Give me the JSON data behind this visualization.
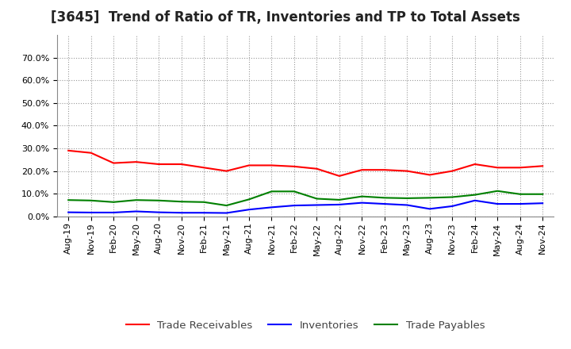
{
  "title": "[3645]  Trend of Ratio of TR, Inventories and TP to Total Assets",
  "x_labels": [
    "Aug-19",
    "Nov-19",
    "Feb-20",
    "May-20",
    "Aug-20",
    "Nov-20",
    "Feb-21",
    "May-21",
    "Aug-21",
    "Nov-21",
    "Feb-22",
    "May-22",
    "Aug-22",
    "Nov-22",
    "Feb-23",
    "May-23",
    "Aug-23",
    "Nov-23",
    "Feb-24",
    "May-24",
    "Aug-24",
    "Nov-24"
  ],
  "trade_receivables": [
    0.29,
    0.28,
    0.235,
    0.24,
    0.23,
    0.23,
    0.215,
    0.2,
    0.225,
    0.225,
    0.22,
    0.21,
    0.178,
    0.205,
    0.205,
    0.2,
    0.183,
    0.2,
    0.23,
    0.215,
    0.215,
    0.222
  ],
  "inventories": [
    0.018,
    0.017,
    0.017,
    0.022,
    0.018,
    0.016,
    0.016,
    0.015,
    0.03,
    0.04,
    0.048,
    0.05,
    0.052,
    0.06,
    0.055,
    0.05,
    0.033,
    0.045,
    0.07,
    0.055,
    0.055,
    0.058
  ],
  "trade_payables": [
    0.072,
    0.07,
    0.063,
    0.072,
    0.07,
    0.065,
    0.063,
    0.048,
    0.075,
    0.11,
    0.11,
    0.078,
    0.073,
    0.088,
    0.082,
    0.08,
    0.082,
    0.085,
    0.095,
    0.112,
    0.098,
    0.098
  ],
  "tr_color": "#ff0000",
  "inv_color": "#0000ff",
  "tp_color": "#008000",
  "ylim": [
    0.0,
    0.8
  ],
  "yticks": [
    0.0,
    0.1,
    0.2,
    0.3,
    0.4,
    0.5,
    0.6,
    0.7
  ],
  "background_color": "#ffffff",
  "plot_bg_color": "#ffffff",
  "grid_color": "#999999",
  "legend_labels": [
    "Trade Receivables",
    "Inventories",
    "Trade Payables"
  ],
  "title_fontsize": 12,
  "tick_fontsize": 8,
  "legend_fontsize": 9.5
}
